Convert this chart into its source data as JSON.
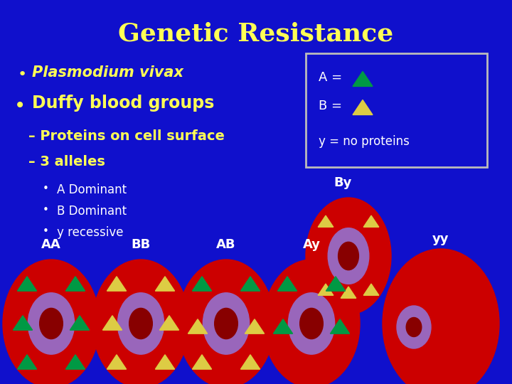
{
  "title": "Genetic Resistance",
  "title_color": "#FFFF55",
  "bg_color": "#1010CC",
  "red_cell": "#CC0000",
  "purple_ring": "#9966BB",
  "dark_red_center": "#880000",
  "green_tri": "#009944",
  "yellow_tri": "#DDCC44",
  "white": "#FFFFFF",
  "legend_border": "#BBBBBB",
  "bullet1": "Plasmodium vivax",
  "bullet2": "Duffy blood groups",
  "sub1": "– Proteins on cell surface",
  "sub2": "– 3 alleles",
  "sub_bullets": [
    "A Dominant",
    "B Dominant",
    "y recessive"
  ],
  "By_label": "By"
}
